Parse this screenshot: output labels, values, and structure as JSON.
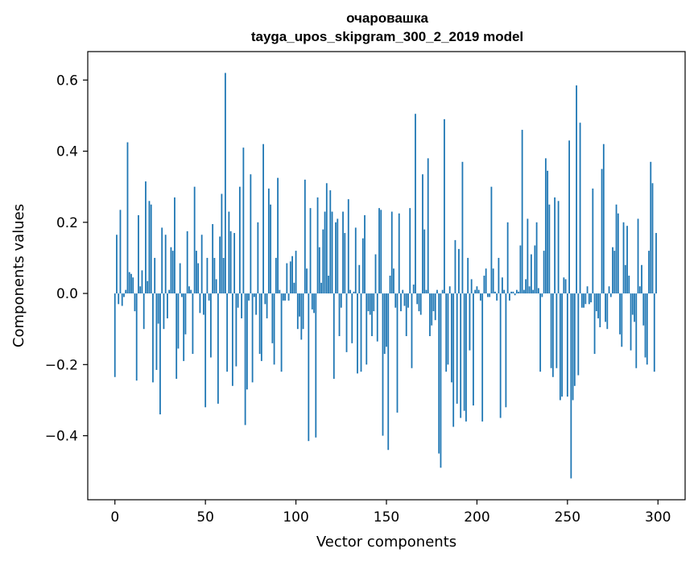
{
  "chart_data": {
    "type": "bar",
    "title": "очаровашка",
    "subtitle": "tayga_upos_skipgram_300_2_2019 model",
    "xlabel": "Vector components",
    "ylabel": "Components values",
    "xlim": [
      -15,
      315
    ],
    "ylim": [
      -0.58,
      0.68
    ],
    "xticks": [
      0,
      50,
      100,
      150,
      200,
      250,
      300
    ],
    "xtick_labels": [
      "0",
      "50",
      "100",
      "150",
      "200",
      "250",
      "300"
    ],
    "yticks": [
      -0.4,
      -0.2,
      0.0,
      0.2,
      0.4,
      0.6
    ],
    "ytick_labels": [
      "−0.4",
      "−0.2",
      "0.0",
      "0.2",
      "0.4",
      "0.6"
    ],
    "bar_color": "#1f77b4",
    "grid": false,
    "legend": "none",
    "x": "0..299",
    "values": [
      -0.235,
      0.165,
      -0.03,
      0.235,
      -0.035,
      -0.01,
      0.01,
      0.425,
      0.06,
      0.055,
      0.045,
      -0.05,
      -0.245,
      0.22,
      0.02,
      0.065,
      -0.1,
      0.315,
      0.035,
      0.26,
      0.25,
      -0.25,
      0.1,
      -0.215,
      -0.085,
      -0.34,
      0.185,
      -0.1,
      0.165,
      -0.07,
      0.01,
      0.13,
      0.12,
      0.27,
      -0.24,
      -0.155,
      0.085,
      -0.01,
      -0.19,
      -0.115,
      0.175,
      0.02,
      0.01,
      -0.17,
      0.3,
      0.12,
      0.085,
      -0.055,
      0.165,
      -0.06,
      -0.32,
      0.1,
      -0.02,
      -0.18,
      0.195,
      0.1,
      0.04,
      -0.31,
      0.16,
      0.28,
      0.1,
      0.62,
      -0.22,
      0.23,
      0.175,
      -0.26,
      0.17,
      -0.205,
      -0.04,
      0.3,
      -0.07,
      0.41,
      -0.37,
      -0.27,
      -0.02,
      0.335,
      -0.25,
      -0.01,
      -0.06,
      0.2,
      -0.17,
      -0.19,
      0.42,
      -0.03,
      -0.07,
      0.295,
      0.25,
      -0.14,
      -0.2,
      0.1,
      0.325,
      0.01,
      -0.22,
      -0.02,
      -0.02,
      0.085,
      -0.02,
      0.09,
      0.105,
      0.03,
      0.12,
      -0.1,
      -0.065,
      -0.13,
      -0.1,
      0.32,
      0.07,
      -0.415,
      0.24,
      -0.045,
      -0.055,
      -0.405,
      0.27,
      0.13,
      0.03,
      0.18,
      0.23,
      0.31,
      0.05,
      0.29,
      0.23,
      -0.24,
      0.2,
      0.21,
      -0.12,
      -0.04,
      0.23,
      0.17,
      -0.165,
      0.265,
      0.01,
      -0.14,
      0.005,
      0.185,
      -0.225,
      0.08,
      -0.22,
      0.155,
      0.22,
      -0.2,
      -0.05,
      -0.06,
      -0.12,
      -0.05,
      0.11,
      -0.135,
      0.24,
      0.235,
      -0.4,
      -0.17,
      -0.15,
      -0.44,
      0.05,
      0.23,
      0.07,
      -0.04,
      -0.335,
      0.225,
      -0.05,
      0.01,
      -0.035,
      -0.12,
      -0.04,
      0.24,
      -0.21,
      0.025,
      0.505,
      -0.03,
      -0.05,
      -0.06,
      0.335,
      0.18,
      0.01,
      0.38,
      -0.12,
      -0.09,
      -0.05,
      -0.075,
      0.01,
      -0.45,
      -0.49,
      0.01,
      0.49,
      -0.22,
      -0.2,
      0.02,
      -0.25,
      -0.375,
      0.15,
      -0.31,
      0.125,
      -0.35,
      0.37,
      -0.33,
      -0.36,
      0.1,
      -0.16,
      0.04,
      -0.315,
      0.01,
      0.02,
      0.01,
      -0.02,
      -0.36,
      0.05,
      0.07,
      -0.01,
      -0.01,
      0.3,
      0.07,
      0.005,
      -0.02,
      0.1,
      -0.35,
      0.045,
      0.01,
      -0.32,
      0.2,
      -0.02,
      0.005,
      0.005,
      -0.005,
      0.01,
      0.005,
      0.135,
      0.46,
      0.01,
      0.04,
      0.21,
      0.02,
      0.11,
      0.01,
      0.135,
      0.2,
      0.015,
      -0.22,
      -0.01,
      0.12,
      0.38,
      0.345,
      0.25,
      -0.21,
      -0.235,
      0.27,
      -0.21,
      0.26,
      -0.3,
      -0.29,
      0.045,
      0.04,
      -0.29,
      0.43,
      -0.52,
      -0.3,
      -0.26,
      0.585,
      -0.23,
      0.48,
      -0.04,
      -0.04,
      -0.03,
      0.02,
      -0.03,
      -0.025,
      0.295,
      -0.17,
      -0.05,
      -0.07,
      -0.095,
      0.35,
      0.42,
      -0.08,
      -0.1,
      0.02,
      -0.01,
      0.13,
      0.12,
      0.25,
      0.225,
      -0.115,
      -0.15,
      0.2,
      0.08,
      0.19,
      0.05,
      -0.16,
      -0.06,
      -0.08,
      -0.21,
      0.21,
      0.02,
      0.08,
      -0.09,
      -0.18,
      -0.2,
      0.12,
      0.37,
      0.31,
      -0.22,
      0.17
    ]
  }
}
